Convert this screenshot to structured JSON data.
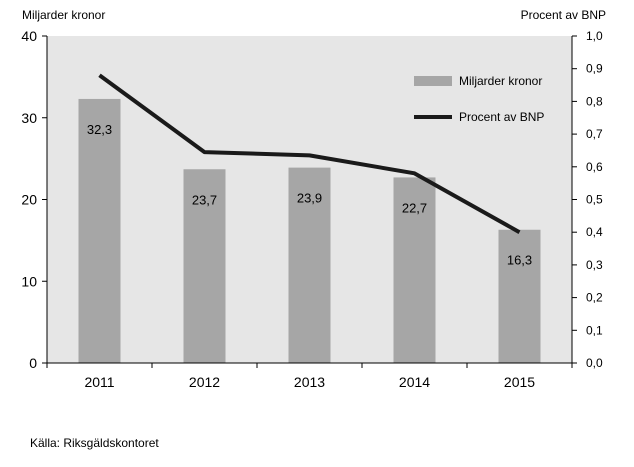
{
  "chart_data": {
    "type": "bar",
    "categories": [
      "2011",
      "2012",
      "2013",
      "2014",
      "2015"
    ],
    "series": [
      {
        "name": "Miljarder kronor",
        "type": "bar",
        "axis": "left",
        "values": [
          32.3,
          23.7,
          23.9,
          22.7,
          16.3
        ],
        "color": "#a6a6a6"
      },
      {
        "name": "Procent av BNP",
        "type": "line",
        "axis": "right",
        "values": [
          0.88,
          0.645,
          0.635,
          0.58,
          0.4
        ],
        "color": "#1a1a1a"
      }
    ],
    "data_labels": [
      "32,3",
      "23,7",
      "23,9",
      "22,7",
      "16,3"
    ],
    "y_left": {
      "label": "Miljarder kronor",
      "lim": [
        0,
        40
      ],
      "ticks": [
        0,
        10,
        20,
        30,
        40
      ],
      "tick_labels": [
        "0",
        "10",
        "20",
        "30",
        "40"
      ]
    },
    "y_right": {
      "label": "Procent av BNP",
      "lim": [
        0,
        1.0
      ],
      "ticks": [
        0.0,
        0.1,
        0.2,
        0.3,
        0.4,
        0.5,
        0.6,
        0.7,
        0.8,
        0.9,
        1.0
      ],
      "tick_labels": [
        "0,0",
        "0,1",
        "0,2",
        "0,3",
        "0,4",
        "0,5",
        "0,6",
        "0,7",
        "0,8",
        "0,9",
        "1,0"
      ]
    },
    "legend": {
      "placement": "top-right",
      "entries": [
        "Miljarder kronor",
        "Procent av BNP"
      ]
    },
    "grid": false,
    "plot_background": "#e6e6e6"
  },
  "source": "Källa: Riksgäldskontoret"
}
